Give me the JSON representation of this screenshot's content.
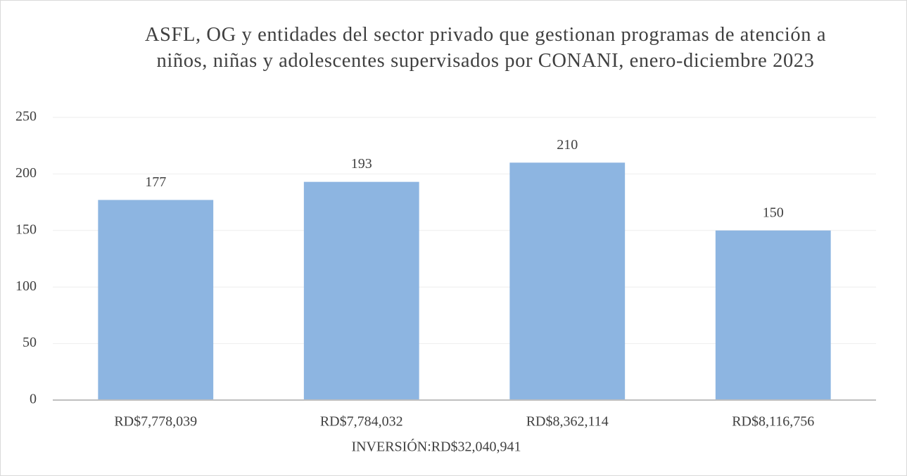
{
  "chart_data": {
    "type": "bar",
    "title": "ASFL, OG y entidades del sector privado que gestionan programas de atención a niños, niñas y adolescentes supervisados por CONANI, enero-diciembre 2023",
    "x_label": "INVERSIÓN:RD$32,040,941",
    "categories": [
      "RD$7,778,039",
      "RD$7,784,032",
      "RD$8,362,114",
      "RD$8,116,756"
    ],
    "values": [
      177,
      193,
      210,
      150
    ],
    "color": "#8db5e1",
    "ylim": [
      0,
      250
    ],
    "yticks": [
      0,
      50,
      100,
      150,
      200,
      250
    ],
    "grid": true
  }
}
